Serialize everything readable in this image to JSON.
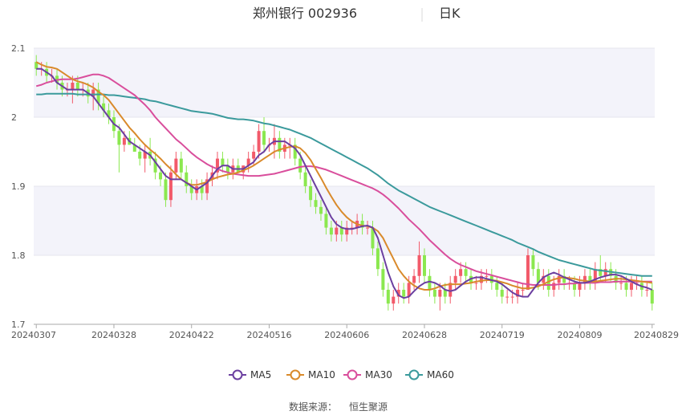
{
  "header": {
    "title": "郑州银行 002936",
    "period": "日K"
  },
  "source": {
    "label": "数据来源：",
    "provider": "恒生聚源"
  },
  "colors": {
    "up": "#f25a6a",
    "down": "#8be84f",
    "ma5": "#6b3fa0",
    "ma10": "#d98a2b",
    "ma30": "#d94e9c",
    "ma60": "#3b9a9c",
    "band": "#f3f3fa"
  },
  "chart_data": {
    "type": "candlestick",
    "title": "郑州银行 002936",
    "ylim": [
      1.7,
      2.1
    ],
    "yticks": [
      1.7,
      1.8,
      1.9,
      2.0,
      2.1
    ],
    "ytick_labels": [
      "1.7",
      "1.8",
      "1.9",
      "2",
      "2.1"
    ],
    "xtick_labels": [
      "20240307",
      "20240328",
      "20240422",
      "20240516",
      "20240606",
      "20240628",
      "20240719",
      "20240809",
      "20240829"
    ],
    "xtick_index": [
      0,
      15,
      30,
      45,
      60,
      75,
      90,
      105,
      119
    ],
    "legend": {
      "placement": "bottom",
      "entries": [
        "MA5",
        "MA10",
        "MA30",
        "MA60"
      ]
    },
    "ohlc": [
      [
        2.08,
        2.09,
        2.06,
        2.07
      ],
      [
        2.07,
        2.08,
        2.06,
        2.07
      ],
      [
        2.07,
        2.08,
        2.05,
        2.06
      ],
      [
        2.06,
        2.07,
        2.05,
        2.06
      ],
      [
        2.06,
        2.07,
        2.04,
        2.05
      ],
      [
        2.05,
        2.06,
        2.03,
        2.04
      ],
      [
        2.04,
        2.05,
        2.03,
        2.04
      ],
      [
        2.04,
        2.06,
        2.02,
        2.05
      ],
      [
        2.05,
        2.06,
        2.03,
        2.04
      ],
      [
        2.04,
        2.05,
        2.03,
        2.04
      ],
      [
        2.04,
        2.05,
        2.02,
        2.03
      ],
      [
        2.03,
        2.05,
        2.01,
        2.04
      ],
      [
        2.04,
        2.05,
        2.01,
        2.02
      ],
      [
        2.02,
        2.03,
        2.0,
        2.01
      ],
      [
        2.01,
        2.02,
        1.99,
        2.0
      ],
      [
        2.0,
        2.01,
        1.97,
        1.98
      ],
      [
        1.98,
        1.99,
        1.92,
        1.96
      ],
      [
        1.96,
        1.98,
        1.95,
        1.97
      ],
      [
        1.97,
        1.98,
        1.96,
        1.96
      ],
      [
        1.96,
        1.97,
        1.95,
        1.95
      ],
      [
        1.95,
        1.96,
        1.93,
        1.94
      ],
      [
        1.94,
        1.96,
        1.92,
        1.95
      ],
      [
        1.95,
        1.97,
        1.93,
        1.94
      ],
      [
        1.94,
        1.95,
        1.91,
        1.92
      ],
      [
        1.92,
        1.93,
        1.9,
        1.91
      ],
      [
        1.91,
        1.92,
        1.87,
        1.88
      ],
      [
        1.88,
        1.93,
        1.87,
        1.92
      ],
      [
        1.92,
        1.95,
        1.91,
        1.94
      ],
      [
        1.94,
        1.95,
        1.91,
        1.92
      ],
      [
        1.92,
        1.93,
        1.89,
        1.9
      ],
      [
        1.9,
        1.91,
        1.88,
        1.89
      ],
      [
        1.89,
        1.91,
        1.88,
        1.9
      ],
      [
        1.9,
        1.91,
        1.88,
        1.89
      ],
      [
        1.89,
        1.92,
        1.88,
        1.91
      ],
      [
        1.91,
        1.93,
        1.9,
        1.92
      ],
      [
        1.92,
        1.95,
        1.91,
        1.94
      ],
      [
        1.94,
        1.95,
        1.92,
        1.93
      ],
      [
        1.93,
        1.94,
        1.91,
        1.92
      ],
      [
        1.92,
        1.94,
        1.91,
        1.93
      ],
      [
        1.93,
        1.94,
        1.92,
        1.92
      ],
      [
        1.92,
        1.93,
        1.91,
        1.93
      ],
      [
        1.93,
        1.95,
        1.92,
        1.94
      ],
      [
        1.94,
        1.96,
        1.93,
        1.95
      ],
      [
        1.95,
        1.99,
        1.94,
        1.98
      ],
      [
        1.98,
        2.0,
        1.95,
        1.96
      ],
      [
        1.96,
        1.97,
        1.95,
        1.96
      ],
      [
        1.96,
        1.99,
        1.94,
        1.97
      ],
      [
        1.97,
        1.98,
        1.94,
        1.95
      ],
      [
        1.95,
        1.97,
        1.94,
        1.96
      ],
      [
        1.96,
        1.97,
        1.94,
        1.96
      ],
      [
        1.96,
        1.97,
        1.93,
        1.94
      ],
      [
        1.94,
        1.95,
        1.91,
        1.92
      ],
      [
        1.92,
        1.93,
        1.89,
        1.9
      ],
      [
        1.9,
        1.91,
        1.87,
        1.88
      ],
      [
        1.88,
        1.89,
        1.86,
        1.87
      ],
      [
        1.87,
        1.88,
        1.85,
        1.86
      ],
      [
        1.86,
        1.87,
        1.83,
        1.84
      ],
      [
        1.84,
        1.85,
        1.82,
        1.83
      ],
      [
        1.83,
        1.85,
        1.82,
        1.84
      ],
      [
        1.84,
        1.85,
        1.82,
        1.83
      ],
      [
        1.83,
        1.85,
        1.82,
        1.84
      ],
      [
        1.84,
        1.85,
        1.83,
        1.84
      ],
      [
        1.84,
        1.86,
        1.83,
        1.85
      ],
      [
        1.85,
        1.86,
        1.83,
        1.84
      ],
      [
        1.84,
        1.85,
        1.83,
        1.84
      ],
      [
        1.84,
        1.85,
        1.8,
        1.81
      ],
      [
        1.81,
        1.82,
        1.77,
        1.78
      ],
      [
        1.78,
        1.79,
        1.74,
        1.75
      ],
      [
        1.75,
        1.76,
        1.72,
        1.73
      ],
      [
        1.73,
        1.75,
        1.72,
        1.74
      ],
      [
        1.74,
        1.76,
        1.73,
        1.75
      ],
      [
        1.75,
        1.76,
        1.73,
        1.74
      ],
      [
        1.74,
        1.77,
        1.73,
        1.76
      ],
      [
        1.76,
        1.78,
        1.75,
        1.77
      ],
      [
        1.77,
        1.82,
        1.76,
        1.8
      ],
      [
        1.8,
        1.81,
        1.76,
        1.77
      ],
      [
        1.77,
        1.78,
        1.74,
        1.75
      ],
      [
        1.75,
        1.76,
        1.73,
        1.74
      ],
      [
        1.74,
        1.76,
        1.72,
        1.75
      ],
      [
        1.75,
        1.76,
        1.73,
        1.74
      ],
      [
        1.74,
        1.77,
        1.73,
        1.76
      ],
      [
        1.76,
        1.78,
        1.75,
        1.77
      ],
      [
        1.77,
        1.79,
        1.76,
        1.78
      ],
      [
        1.78,
        1.79,
        1.76,
        1.77
      ],
      [
        1.77,
        1.78,
        1.75,
        1.76
      ],
      [
        1.76,
        1.77,
        1.75,
        1.76
      ],
      [
        1.76,
        1.78,
        1.75,
        1.77
      ],
      [
        1.77,
        1.78,
        1.76,
        1.77
      ],
      [
        1.77,
        1.78,
        1.75,
        1.76
      ],
      [
        1.76,
        1.77,
        1.74,
        1.75
      ],
      [
        1.75,
        1.76,
        1.73,
        1.74
      ],
      [
        1.74,
        1.75,
        1.73,
        1.74
      ],
      [
        1.74,
        1.75,
        1.73,
        1.74
      ],
      [
        1.74,
        1.76,
        1.73,
        1.75
      ],
      [
        1.75,
        1.76,
        1.74,
        1.75
      ],
      [
        1.75,
        1.81,
        1.75,
        1.8
      ],
      [
        1.8,
        1.81,
        1.77,
        1.78
      ],
      [
        1.78,
        1.79,
        1.75,
        1.76
      ],
      [
        1.76,
        1.78,
        1.75,
        1.77
      ],
      [
        1.77,
        1.78,
        1.74,
        1.75
      ],
      [
        1.75,
        1.77,
        1.74,
        1.76
      ],
      [
        1.76,
        1.78,
        1.75,
        1.77
      ],
      [
        1.77,
        1.78,
        1.75,
        1.76
      ],
      [
        1.76,
        1.77,
        1.75,
        1.76
      ],
      [
        1.76,
        1.77,
        1.74,
        1.75
      ],
      [
        1.75,
        1.77,
        1.74,
        1.76
      ],
      [
        1.76,
        1.78,
        1.75,
        1.77
      ],
      [
        1.77,
        1.78,
        1.75,
        1.76
      ],
      [
        1.76,
        1.79,
        1.75,
        1.78
      ],
      [
        1.78,
        1.8,
        1.76,
        1.77
      ],
      [
        1.77,
        1.79,
        1.76,
        1.78
      ],
      [
        1.78,
        1.79,
        1.76,
        1.77
      ],
      [
        1.77,
        1.78,
        1.75,
        1.76
      ],
      [
        1.76,
        1.77,
        1.75,
        1.76
      ],
      [
        1.76,
        1.77,
        1.74,
        1.75
      ],
      [
        1.75,
        1.77,
        1.74,
        1.76
      ],
      [
        1.76,
        1.77,
        1.75,
        1.76
      ],
      [
        1.76,
        1.77,
        1.74,
        1.75
      ],
      [
        1.75,
        1.76,
        1.74,
        1.75
      ],
      [
        1.75,
        1.76,
        1.72,
        1.73
      ]
    ],
    "ma5": [
      2.07,
      2.07,
      2.065,
      2.06,
      2.05,
      2.045,
      2.04,
      2.04,
      2.04,
      2.04,
      2.035,
      2.03,
      2.02,
      2.01,
      2.0,
      1.99,
      1.985,
      1.975,
      1.965,
      1.96,
      1.955,
      1.95,
      1.945,
      1.935,
      1.925,
      1.915,
      1.91,
      1.91,
      1.91,
      1.905,
      1.9,
      1.895,
      1.9,
      1.905,
      1.915,
      1.925,
      1.93,
      1.93,
      1.925,
      1.925,
      1.925,
      1.93,
      1.935,
      1.945,
      1.95,
      1.96,
      1.965,
      1.965,
      1.965,
      1.96,
      1.955,
      1.945,
      1.93,
      1.915,
      1.9,
      1.885,
      1.87,
      1.855,
      1.845,
      1.84,
      1.838,
      1.838,
      1.84,
      1.842,
      1.843,
      1.84,
      1.825,
      1.8,
      1.775,
      1.755,
      1.742,
      1.738,
      1.74,
      1.748,
      1.755,
      1.76,
      1.762,
      1.76,
      1.756,
      1.75,
      1.748,
      1.75,
      1.756,
      1.762,
      1.766,
      1.768,
      1.768,
      1.766,
      1.764,
      1.762,
      1.758,
      1.752,
      1.746,
      1.742,
      1.74,
      1.74,
      1.75,
      1.76,
      1.768,
      1.772,
      1.775,
      1.772,
      1.768,
      1.765,
      1.762,
      1.76,
      1.76,
      1.762,
      1.765,
      1.768,
      1.77,
      1.772,
      1.772,
      1.77,
      1.766,
      1.762,
      1.758,
      1.755,
      1.753,
      1.75
    ],
    "ma10": [
      2.08,
      2.076,
      2.073,
      2.072,
      2.07,
      2.065,
      2.06,
      2.055,
      2.052,
      2.05,
      2.047,
      2.043,
      2.037,
      2.032,
      2.025,
      2.015,
      2.005,
      1.995,
      1.985,
      1.977,
      1.968,
      1.96,
      1.953,
      1.947,
      1.94,
      1.932,
      1.925,
      1.917,
      1.91,
      1.905,
      1.902,
      1.902,
      1.904,
      1.906,
      1.91,
      1.913,
      1.915,
      1.917,
      1.918,
      1.92,
      1.923,
      1.926,
      1.93,
      1.935,
      1.94,
      1.945,
      1.95,
      1.953,
      1.955,
      1.957,
      1.958,
      1.955,
      1.948,
      1.938,
      1.925,
      1.912,
      1.898,
      1.885,
      1.873,
      1.863,
      1.855,
      1.849,
      1.845,
      1.843,
      1.842,
      1.84,
      1.835,
      1.825,
      1.81,
      1.795,
      1.78,
      1.77,
      1.762,
      1.756,
      1.752,
      1.75,
      1.75,
      1.752,
      1.755,
      1.757,
      1.758,
      1.758,
      1.758,
      1.759,
      1.76,
      1.762,
      1.763,
      1.764,
      1.764,
      1.763,
      1.761,
      1.759,
      1.756,
      1.754,
      1.752,
      1.752,
      1.753,
      1.755,
      1.758,
      1.762,
      1.765,
      1.767,
      1.768,
      1.767,
      1.766,
      1.764,
      1.763,
      1.762,
      1.762,
      1.763,
      1.764,
      1.765,
      1.766,
      1.766,
      1.765,
      1.764,
      1.763,
      1.762,
      1.761,
      1.76
    ],
    "ma30": [
      2.045,
      2.047,
      2.05,
      2.052,
      2.054,
      2.055,
      2.055,
      2.055,
      2.056,
      2.058,
      2.06,
      2.062,
      2.062,
      2.06,
      2.057,
      2.052,
      2.047,
      2.042,
      2.037,
      2.032,
      2.025,
      2.018,
      2.01,
      2.0,
      1.992,
      1.984,
      1.976,
      1.968,
      1.962,
      1.955,
      1.948,
      1.942,
      1.937,
      1.932,
      1.928,
      1.925,
      1.922,
      1.92,
      1.918,
      1.917,
      1.916,
      1.915,
      1.915,
      1.915,
      1.916,
      1.917,
      1.918,
      1.92,
      1.922,
      1.924,
      1.926,
      1.928,
      1.929,
      1.929,
      1.928,
      1.926,
      1.924,
      1.921,
      1.918,
      1.915,
      1.912,
      1.909,
      1.906,
      1.903,
      1.9,
      1.897,
      1.893,
      1.888,
      1.882,
      1.875,
      1.868,
      1.86,
      1.852,
      1.845,
      1.838,
      1.83,
      1.822,
      1.815,
      1.808,
      1.801,
      1.795,
      1.79,
      1.786,
      1.783,
      1.78,
      1.777,
      1.775,
      1.773,
      1.771,
      1.769,
      1.767,
      1.765,
      1.763,
      1.761,
      1.759,
      1.758,
      1.757,
      1.757,
      1.757,
      1.757,
      1.757,
      1.758,
      1.758,
      1.759,
      1.759,
      1.76,
      1.76,
      1.76,
      1.76,
      1.761,
      1.761,
      1.761,
      1.762,
      1.762,
      1.762,
      1.762,
      1.762,
      1.762,
      1.762,
      1.762
    ],
    "ma60": [
      2.033,
      2.033,
      2.034,
      2.034,
      2.034,
      2.034,
      2.034,
      2.034,
      2.033,
      2.033,
      2.033,
      2.033,
      2.033,
      2.033,
      2.032,
      2.032,
      2.031,
      2.03,
      2.029,
      2.028,
      2.027,
      2.026,
      2.024,
      2.023,
      2.021,
      2.019,
      2.017,
      2.015,
      2.013,
      2.011,
      2.009,
      2.008,
      2.007,
      2.006,
      2.005,
      2.003,
      2.001,
      1.999,
      1.998,
      1.997,
      1.997,
      1.996,
      1.995,
      1.993,
      1.991,
      1.99,
      1.988,
      1.986,
      1.984,
      1.982,
      1.979,
      1.976,
      1.973,
      1.97,
      1.966,
      1.962,
      1.958,
      1.954,
      1.95,
      1.946,
      1.942,
      1.938,
      1.934,
      1.93,
      1.926,
      1.921,
      1.916,
      1.91,
      1.904,
      1.899,
      1.894,
      1.89,
      1.886,
      1.882,
      1.878,
      1.874,
      1.87,
      1.867,
      1.864,
      1.861,
      1.858,
      1.855,
      1.852,
      1.849,
      1.846,
      1.843,
      1.84,
      1.837,
      1.834,
      1.831,
      1.828,
      1.825,
      1.822,
      1.818,
      1.815,
      1.812,
      1.809,
      1.805,
      1.802,
      1.799,
      1.796,
      1.793,
      1.791,
      1.789,
      1.787,
      1.785,
      1.783,
      1.781,
      1.779,
      1.778,
      1.777,
      1.776,
      1.775,
      1.774,
      1.773,
      1.772,
      1.771,
      1.77,
      1.77,
      1.77
    ]
  }
}
